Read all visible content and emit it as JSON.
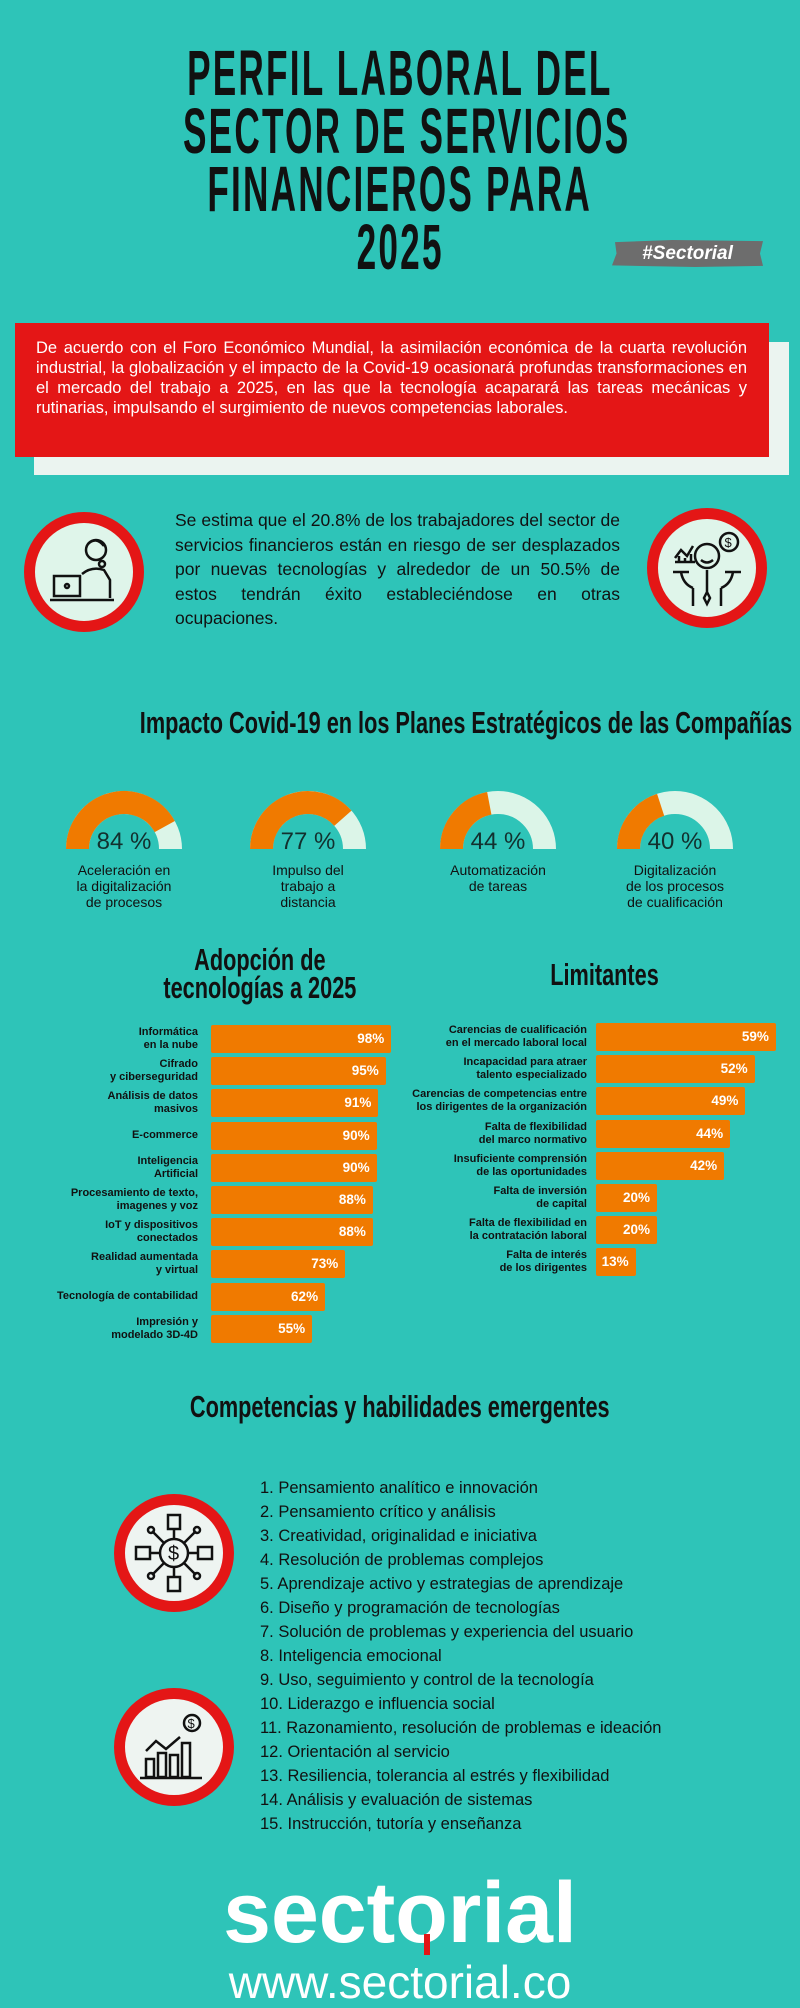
{
  "header": {
    "title_lines": [
      "PERFIL LABORAL DEL",
      "SECTOR DE SERVICIOS",
      "FINANCIEROS PARA",
      "2025"
    ],
    "badge": "#Sectorial"
  },
  "intro": {
    "text": "De acuerdo con el Foro Económico Mundial, la asimilación económica de la cuarta revolución industrial, la globalización y el impacto de la Covid-19 ocasionará profundas transformaciones en el mercado del trabajo a 2025, en las que la tecnología acaparará las tareas mecánicas y rutinarias, impulsando el surgimiento de nuevos competencias laborales."
  },
  "stat": {
    "text": "Se estima que el 20.8% de los trabajadores del sector de servicios financieros están en riesgo de ser desplazados por nuevas tecnologías y alrededor de un 50.5% de estos tendrán éxito estableciéndose en otras ocupaciones.",
    "left_icon": "person-at-laptop-icon",
    "right_icon": "happy-businessman-money-icon"
  },
  "impacto": {
    "title": "Impacto Covid-19 en los Planes Estratégicos de las Compañías",
    "gauges": [
      {
        "value": 84,
        "display": "84 %",
        "label": "Aceleración en\nla digitalización\nde procesos"
      },
      {
        "value": 77,
        "display": "77 %",
        "label": "Impulso del\ntrabajo a\ndistancia"
      },
      {
        "value": 44,
        "display": "44 %",
        "label": "Automatización\nde tareas"
      },
      {
        "value": 40,
        "display": "40 %",
        "label": "Digitalización\nde los procesos\nde cualificación"
      }
    ]
  },
  "chart_data": [
    {
      "type": "bar",
      "orientation": "horizontal",
      "title": "Adopción de\ntecnologías a 2025",
      "categories": [
        "Informática\nen la nube",
        "Cifrado\ny ciberseguridad",
        "Análisis de datos\nmasivos",
        "E-commerce",
        "Inteligencia\nArtificial",
        "Procesamiento de texto,\nimagenes y voz",
        "IoT y dispositivos\nconectados",
        "Realidad aumentada\ny virtual",
        "Tecnología de contabilidad",
        "Impresión y\nmodelado 3D-4D"
      ],
      "values": [
        98,
        95,
        91,
        90,
        90,
        88,
        88,
        73,
        62,
        55
      ],
      "value_labels": [
        "98%",
        "95%",
        "91%",
        "90%",
        "90%",
        "88%",
        "88%",
        "73%",
        "62%",
        "55%"
      ],
      "color": "#f07a00"
    },
    {
      "type": "bar",
      "orientation": "horizontal",
      "title": "Limitantes",
      "categories": [
        "Carencias de cualificación\nen el mercado laboral local",
        "Incapacidad para atraer\ntalento especializado",
        "Carencias de competencias entre\nlos dirigentes de la organización",
        "Falta de flexibilidad\ndel marco normativo",
        "Insuficiente comprensión\nde las oportunidades",
        "Falta de inversión\nde capital",
        "Falta de flexibilidad en\nla contratación  laboral",
        "Falta de interés\nde los dirigentes"
      ],
      "values": [
        59,
        52,
        49,
        44,
        42,
        20,
        20,
        13
      ],
      "value_labels": [
        "59%",
        "52%",
        "49%",
        "44%",
        "42%",
        "20%",
        "20%",
        "13%"
      ],
      "color": "#f07a00"
    }
  ],
  "competencias": {
    "title": "Competencias y habilidades emergentes",
    "items": [
      "1. Pensamiento analítico e innovación",
      "2. Pensamiento crítico y análisis",
      "3. Creatividad, originalidad e iniciativa",
      "4. Resolución de problemas complejos",
      "5. Aprendizaje activo y estrategias de aprendizaje",
      "6. Diseño y programación de tecnologías",
      "7. Solución de problemas y experiencia del usuario",
      "8. Inteligencia emocional",
      "9. Uso, seguimiento y control de la tecnología",
      "10. Liderazgo e influencia social",
      "11. Razonamiento, resolución de problemas e ideación",
      "12. Orientación al servicio",
      "13. Resiliencia, tolerancia al estrés y flexibilidad",
      "14. Análisis y evaluación de sistemas",
      "15. Instrucción, tutoría y enseñanza"
    ],
    "icons": [
      "money-network-icon",
      "growth-chart-money-icon"
    ]
  },
  "footer": {
    "logo": "sectorial",
    "url": "www.sectorial.co"
  },
  "colors": {
    "background": "#2ec4b8",
    "accent_red": "#e41616",
    "bar_orange": "#f07a00",
    "gauge_track": "#dcf5e8"
  }
}
